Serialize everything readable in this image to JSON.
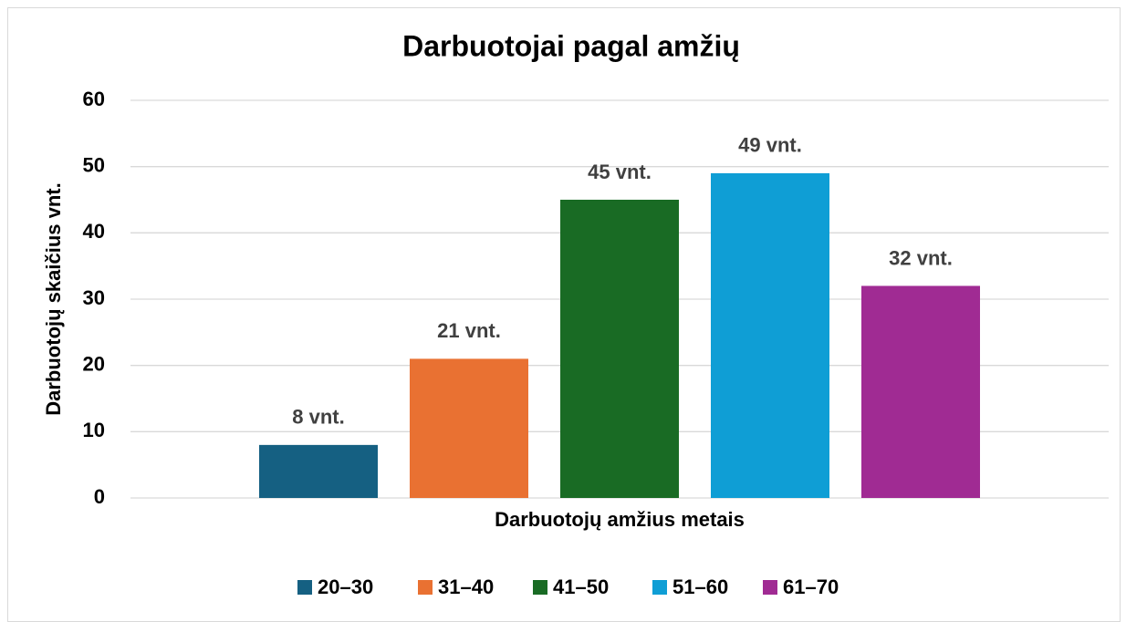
{
  "chart_data": {
    "type": "bar",
    "title": "Darbuotojai pagal amžių",
    "xlabel": "Darbuotojų amžius metais",
    "ylabel": "Darbuotojų skaičius vnt.",
    "categories": [
      null
    ],
    "series": [
      {
        "name": "20–30",
        "color": "#156082",
        "values": [
          8
        ],
        "value_labels": [
          "8 vnt."
        ]
      },
      {
        "name": "31–40",
        "color": "#e97132",
        "values": [
          21
        ],
        "value_labels": [
          "21 vnt."
        ]
      },
      {
        "name": "41–50",
        "color": "#196b24",
        "values": [
          45
        ],
        "value_labels": [
          "45 vnt."
        ]
      },
      {
        "name": "51–60",
        "color": "#0f9ed5",
        "values": [
          49
        ],
        "value_labels": [
          "49 vnt."
        ]
      },
      {
        "name": "61–70",
        "color": "#a02b93",
        "values": [
          32
        ],
        "value_labels": [
          "32 vnt."
        ]
      }
    ],
    "ylim": [
      0,
      60
    ],
    "yticks": [
      0,
      10,
      20,
      30,
      40,
      50,
      60
    ],
    "grid": true,
    "legend": "bottom"
  }
}
